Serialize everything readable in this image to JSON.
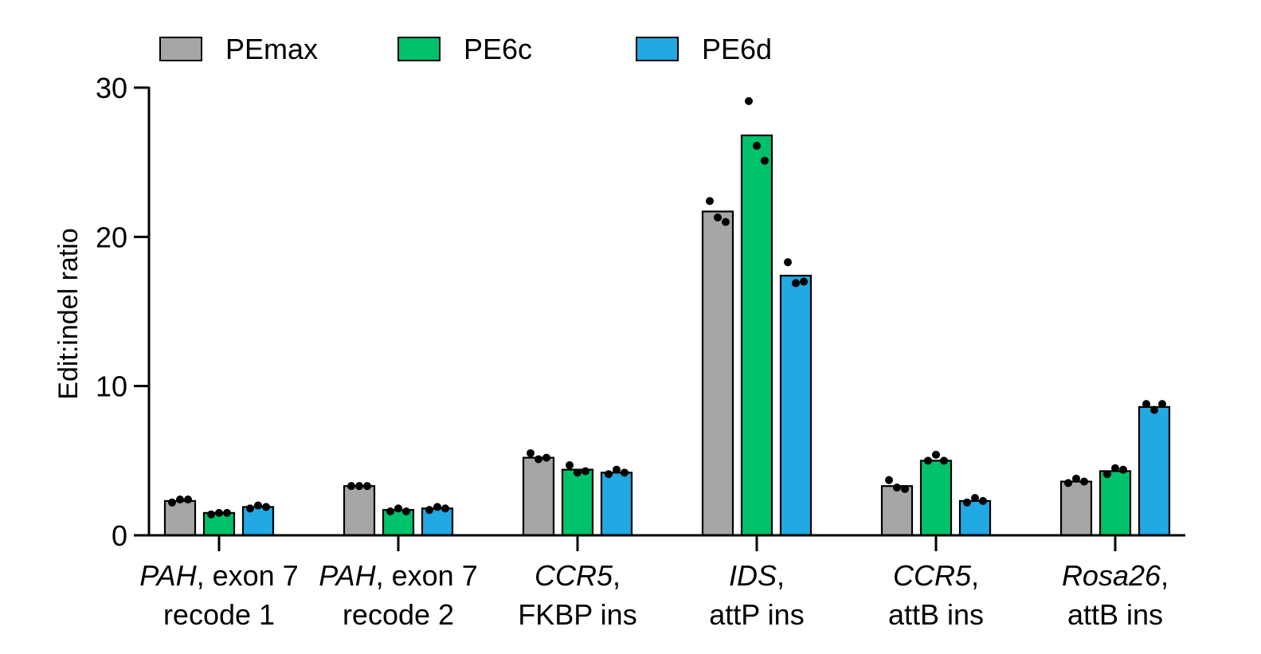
{
  "chart_data": {
    "type": "bar",
    "title": "",
    "xlabel": "",
    "ylabel": "Edit:indel ratio",
    "ylim": [
      0,
      30
    ],
    "yticks": [
      "0",
      "10",
      "20",
      "30"
    ],
    "legend_position": "top-left",
    "grid": false,
    "categories": [
      {
        "italic": "PAH",
        "rest": ", exon 7",
        "line2": "recode 1"
      },
      {
        "italic": "PAH",
        "rest": ", exon 7",
        "line2": "recode 2"
      },
      {
        "italic": "CCR5",
        "rest": ",",
        "line2": "FKBP ins"
      },
      {
        "italic": "IDS",
        "rest": ",",
        "line2": "attP ins"
      },
      {
        "italic": "CCR5",
        "rest": ",",
        "line2": "attB ins"
      },
      {
        "italic": "Rosa26",
        "rest": ",",
        "line2": "attB ins"
      }
    ],
    "series": [
      {
        "name": "PEmax",
        "color": "#a6a6a6",
        "values": [
          2.3,
          3.3,
          5.2,
          21.7,
          3.3,
          3.6
        ],
        "points": [
          [
            2.2,
            2.4,
            2.4
          ],
          [
            3.3,
            3.3,
            3.3
          ],
          [
            5.5,
            5.1,
            5.2
          ],
          [
            22.4,
            21.3,
            21.0
          ],
          [
            3.7,
            3.2,
            3.1
          ],
          [
            3.5,
            3.8,
            3.6
          ]
        ]
      },
      {
        "name": "PE6c",
        "color": "#00c26b",
        "values": [
          1.5,
          1.7,
          4.4,
          26.8,
          5.0,
          4.3
        ],
        "points": [
          [
            1.4,
            1.5,
            1.5
          ],
          [
            1.6,
            1.8,
            1.6
          ],
          [
            4.7,
            4.2,
            4.3
          ],
          [
            29.1,
            26.1,
            25.1
          ],
          [
            5.0,
            5.4,
            5.0
          ],
          [
            4.1,
            4.5,
            4.4
          ]
        ]
      },
      {
        "name": "PE6d",
        "color": "#22a8e2",
        "values": [
          1.9,
          1.8,
          4.2,
          17.4,
          2.3,
          8.6
        ],
        "points": [
          [
            1.8,
            2.0,
            1.9
          ],
          [
            1.7,
            1.9,
            1.8
          ],
          [
            4.1,
            4.4,
            4.2
          ],
          [
            18.3,
            16.9,
            17.0
          ],
          [
            2.2,
            2.5,
            2.3
          ],
          [
            8.8,
            8.4,
            8.8
          ]
        ]
      }
    ]
  }
}
